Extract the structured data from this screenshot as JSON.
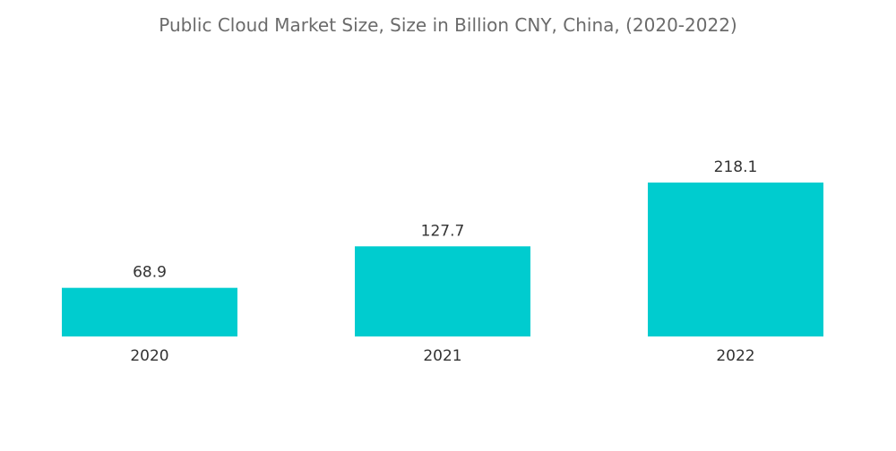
{
  "chart_data": {
    "type": "bar",
    "title": "Public Cloud Market Size, Size in Billion CNY, China, (2020-2022)",
    "categories": [
      "2020",
      "2021",
      "2022"
    ],
    "values": [
      68.9,
      127.7,
      218.1
    ],
    "value_labels": [
      "68.9",
      "127.7",
      "218.1"
    ],
    "xlabel": "",
    "ylabel": "",
    "ylim": [
      0,
      218.1
    ],
    "grid": false,
    "legend": "none",
    "bar_color": "#00CCCF"
  }
}
